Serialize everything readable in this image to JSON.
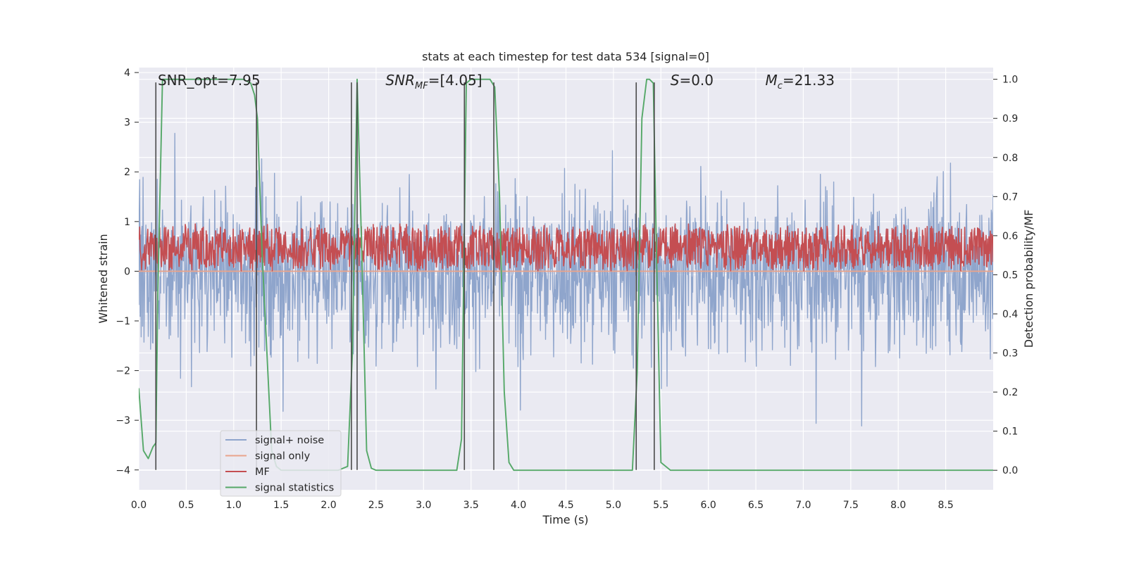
{
  "chart_data": {
    "type": "line",
    "title": "stats at each timestep for test data 534 [signal=0]",
    "xlabel": "Time (s)",
    "ylabel": "Whitened strain",
    "ylabel_right": "Detection probability/MF",
    "xlim": [
      0,
      9.0
    ],
    "ylim": [
      -4.4,
      4.1
    ],
    "ylim_right": [
      -0.05,
      1.03
    ],
    "grid": true,
    "background": "#eaeaf2",
    "x_ticks": [
      "0.0",
      "0.5",
      "1.0",
      "1.5",
      "2.0",
      "2.5",
      "3.0",
      "3.5",
      "4.0",
      "4.5",
      "5.0",
      "5.5",
      "6.0",
      "6.5",
      "7.0",
      "7.5",
      "8.0",
      "8.5"
    ],
    "y_ticks": [
      "−4",
      "−3",
      "−2",
      "−1",
      "0",
      "1",
      "2",
      "3",
      "4"
    ],
    "y_ticks_right": [
      "0.0",
      "0.1",
      "0.2",
      "0.3",
      "0.4",
      "0.5",
      "0.6",
      "0.7",
      "0.8",
      "0.9",
      "1.0"
    ],
    "annotations": [
      {
        "pre": "SNR_opt=7.95",
        "italic": "",
        "sub": "",
        "post": ""
      },
      {
        "pre": "",
        "italic": "SNR",
        "sub": "MF",
        "post": "=[4.05]"
      },
      {
        "pre": "",
        "italic": "S",
        "sub": "",
        "post": "=0.0"
      },
      {
        "pre": "",
        "italic": "M",
        "sub": "c",
        "post": "=21.33"
      }
    ],
    "legend_position": "lower left",
    "series": [
      {
        "name": "signal+ noise",
        "color": "#8fa5cc",
        "axis": "left",
        "kind": "noise",
        "amplitude_range": [
          -4.0,
          4.0
        ]
      },
      {
        "name": "signal only",
        "color": "#e9a48c",
        "axis": "left",
        "x": [
          0.0,
          9.0
        ],
        "y": [
          0.0,
          0.0
        ]
      },
      {
        "name": "MF",
        "color": "#c44e52",
        "axis": "right",
        "kind": "noise",
        "range": [
          0.51,
          0.63
        ]
      },
      {
        "name": "signal statistics",
        "color": "#55a868",
        "axis": "right",
        "x": [
          0.0,
          0.05,
          0.1,
          0.15,
          0.18,
          0.2,
          0.25,
          0.3,
          0.5,
          1.0,
          1.1,
          1.18,
          1.22,
          1.25,
          1.3,
          1.4,
          1.45,
          1.5,
          2.0,
          2.1,
          2.2,
          2.25,
          2.3,
          2.35,
          2.4,
          2.45,
          2.5,
          2.6,
          3.0,
          3.35,
          3.4,
          3.45,
          3.5,
          3.55,
          3.7,
          3.75,
          3.8,
          3.85,
          3.9,
          3.95,
          4.0,
          5.0,
          5.2,
          5.25,
          5.3,
          5.35,
          5.38,
          5.42,
          5.45,
          5.5,
          5.6,
          6.0,
          9.0
        ],
        "y": [
          0.21,
          0.05,
          0.03,
          0.06,
          0.07,
          0.45,
          1.0,
          1.0,
          1.0,
          1.0,
          1.0,
          0.99,
          0.96,
          0.9,
          0.55,
          0.05,
          0.01,
          0.0,
          0.0,
          0.0,
          0.01,
          0.3,
          1.0,
          0.55,
          0.05,
          0.005,
          0.0,
          0.0,
          0.0,
          0.0,
          0.08,
          0.99,
          1.0,
          1.0,
          1.0,
          0.98,
          0.7,
          0.2,
          0.02,
          0.0,
          0.0,
          0.0,
          0.0,
          0.25,
          0.9,
          1.0,
          1.0,
          0.99,
          0.6,
          0.02,
          0.0,
          0.0,
          0.0
        ]
      }
    ],
    "vertical_markers": [
      {
        "x": 0.18,
        "y": [
          -4.0,
          3.8
        ]
      },
      {
        "x": 1.24,
        "y": [
          -4.0,
          3.8
        ]
      },
      {
        "x": 2.24,
        "y": [
          -4.0,
          3.8
        ]
      },
      {
        "x": 2.3,
        "y": [
          -4.0,
          3.8
        ]
      },
      {
        "x": 3.43,
        "y": [
          -4.0,
          3.8
        ]
      },
      {
        "x": 3.74,
        "y": [
          -4.0,
          3.8
        ]
      },
      {
        "x": 5.24,
        "y": [
          -4.0,
          3.8
        ]
      },
      {
        "x": 5.43,
        "y": [
          -4.0,
          3.8
        ]
      }
    ]
  }
}
